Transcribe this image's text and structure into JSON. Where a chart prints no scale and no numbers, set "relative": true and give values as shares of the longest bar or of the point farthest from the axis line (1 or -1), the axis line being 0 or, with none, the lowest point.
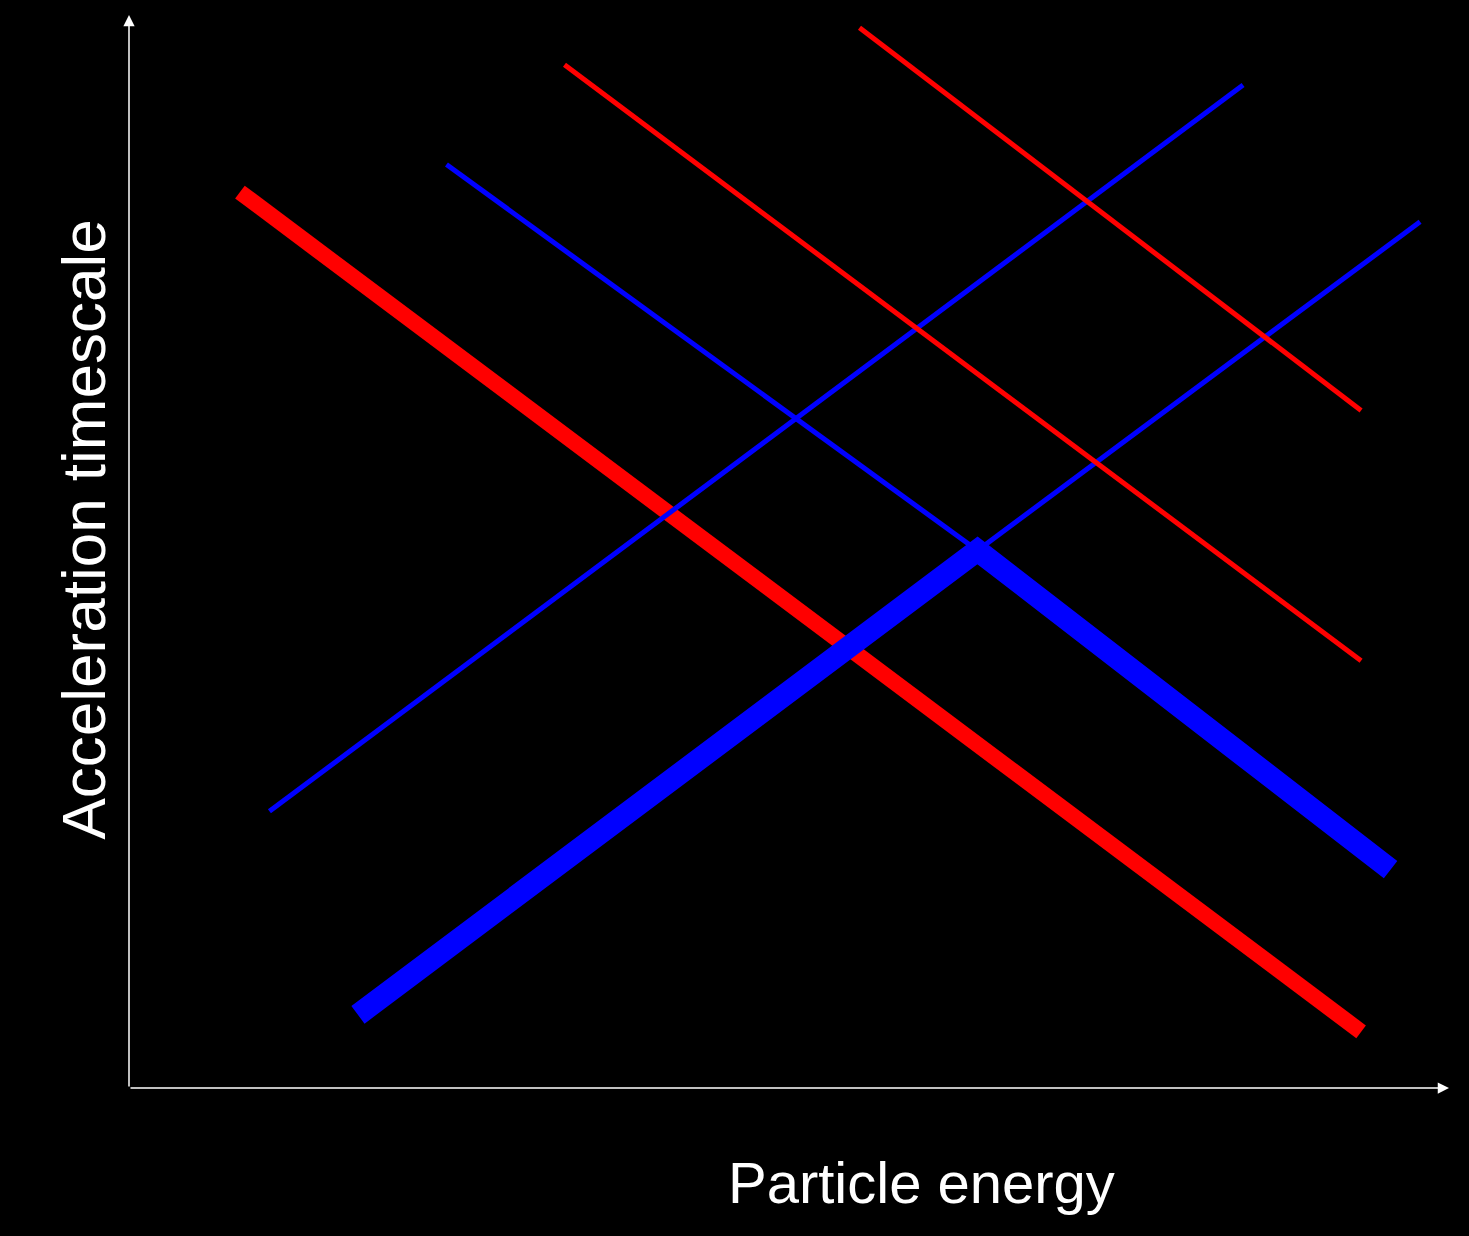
{
  "chart_data": {
    "type": "line",
    "relative": true,
    "xlabel": "Particle energy",
    "ylabel": "Acceleration timescale",
    "grid": false,
    "marker": "none",
    "line_style": "solid",
    "categories": [
      null,
      null,
      null,
      null,
      null,
      null,
      null,
      null,
      null,
      null,
      null,
      null,
      null,
      null,
      null,
      null,
      null,
      null,
      null,
      null,
      null,
      null,
      null,
      null,
      null,
      null,
      null,
      null,
      null,
      null,
      null,
      null,
      null,
      null,
      null,
      null,
      null,
      null,
      null,
      null,
      null
    ],
    "series": [
      {
        "color": "#ff0000",
        "values": [
          0.845,
          null,
          null,
          null,
          null,
          null,
          null,
          null,
          null,
          null,
          null,
          null,
          null,
          null,
          null,
          null,
          null,
          null,
          null,
          null,
          null,
          null,
          null,
          null,
          null,
          null,
          null,
          null,
          null,
          null,
          null,
          null,
          null,
          null,
          null,
          null,
          null,
          null,
          0.053,
          null,
          null
        ]
      },
      {
        "color": "#0000ff",
        "values": [
          null,
          null,
          null,
          null,
          0.069,
          null,
          null,
          null,
          null,
          null,
          null,
          null,
          null,
          null,
          null,
          null,
          null,
          null,
          null,
          null,
          null,
          null,
          null,
          null,
          null,
          0.507,
          null,
          null,
          null,
          null,
          null,
          null,
          null,
          null,
          null,
          null,
          null,
          null,
          null,
          0.206,
          null
        ]
      },
      {
        "color": "#0000ff",
        "values": [
          null,
          0.261,
          null,
          null,
          null,
          null,
          null,
          null,
          null,
          null,
          null,
          null,
          null,
          null,
          null,
          null,
          null,
          null,
          null,
          null,
          null,
          null,
          null,
          null,
          null,
          null,
          null,
          null,
          null,
          null,
          null,
          null,
          null,
          null,
          0.946,
          null,
          null,
          null,
          null,
          null,
          null
        ]
      },
      {
        "color": "#0000ff",
        "values": [
          null,
          null,
          null,
          null,
          null,
          null,
          null,
          0.871,
          null,
          null,
          null,
          null,
          null,
          null,
          null,
          null,
          null,
          null,
          null,
          null,
          null,
          null,
          null,
          null,
          null,
          0.507,
          null,
          null,
          null,
          null,
          null,
          null,
          null,
          null,
          null,
          null,
          null,
          null,
          null,
          null,
          null
        ]
      },
      {
        "color": "#0000ff",
        "values": [
          null,
          null,
          null,
          null,
          null,
          null,
          null,
          null,
          null,
          null,
          null,
          null,
          null,
          null,
          null,
          null,
          null,
          null,
          null,
          null,
          null,
          null,
          null,
          null,
          null,
          0.507,
          null,
          null,
          null,
          null,
          null,
          null,
          null,
          null,
          null,
          null,
          null,
          null,
          null,
          null,
          0.817
        ]
      },
      {
        "color": "#ff0000",
        "values": [
          null,
          null,
          null,
          null,
          null,
          null,
          null,
          null,
          null,
          null,
          null,
          0.965,
          null,
          null,
          null,
          null,
          null,
          null,
          null,
          null,
          null,
          null,
          null,
          null,
          null,
          null,
          null,
          null,
          null,
          null,
          null,
          null,
          null,
          null,
          null,
          null,
          null,
          null,
          0.403,
          null,
          null
        ]
      },
      {
        "color": "#ff0000",
        "values": [
          null,
          null,
          null,
          null,
          null,
          null,
          null,
          null,
          null,
          null,
          null,
          null,
          null,
          null,
          null,
          null,
          null,
          null,
          null,
          null,
          null,
          1.0,
          null,
          null,
          null,
          null,
          null,
          null,
          null,
          null,
          null,
          null,
          null,
          null,
          null,
          null,
          null,
          null,
          0.639,
          null,
          null
        ]
      }
    ]
  }
}
